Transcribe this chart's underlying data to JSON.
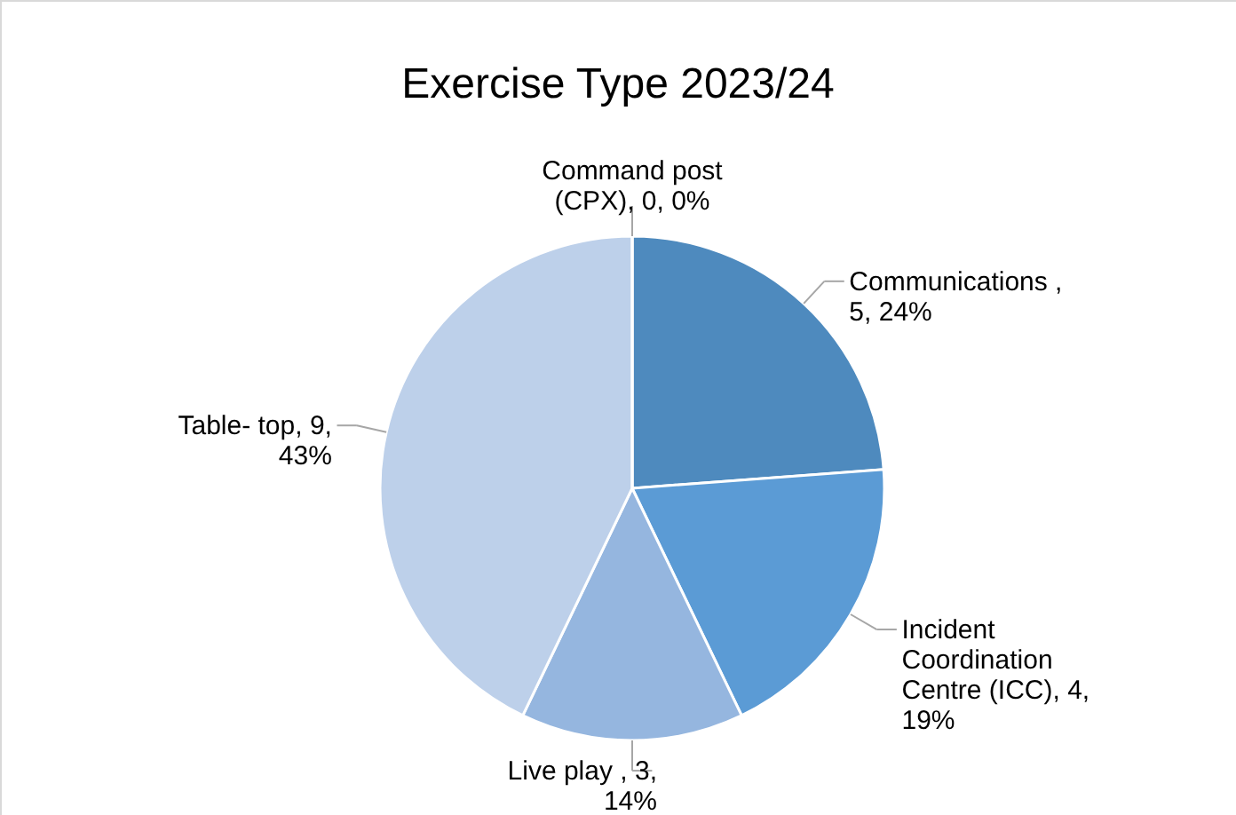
{
  "chart_data": {
    "type": "pie",
    "title": "Exercise Type 2023/24",
    "categories": [
      "Communications ",
      "Incident Coordination Centre (ICC)",
      "Live play ",
      "Table- top",
      "Command post (CPX)"
    ],
    "values": [
      5,
      4,
      3,
      9,
      0
    ],
    "value_labels": [
      ", 5, 24%",
      ", 4, 19%",
      ", 3, 14%",
      ", 9, 43%",
      ", 0, 0%"
    ],
    "colors": [
      "#4e8abe",
      "#5b9bd5",
      "#95b6df",
      "#bdd0ea",
      "#a5c0e3"
    ]
  }
}
